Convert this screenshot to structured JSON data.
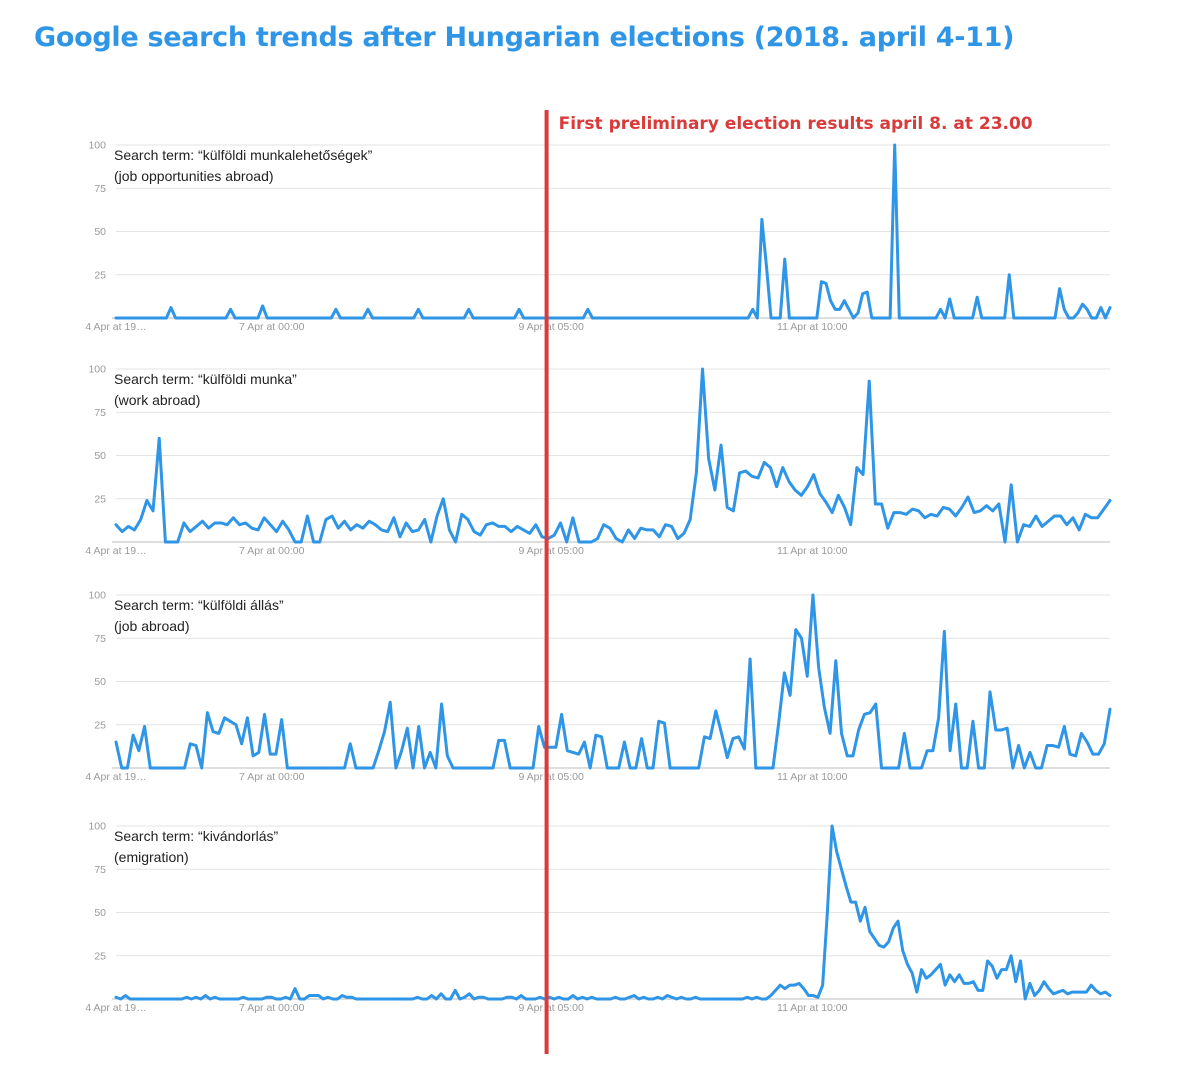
{
  "title": "Google search trends after Hungarian elections (2018. april 4-11)",
  "annotation": {
    "label": "First preliminary election results april 8. at 23.00",
    "color": "#d93a3a",
    "x_index": 94
  },
  "colors": {
    "series": "#2f95e6",
    "grid": "#e3e3e3",
    "axis": "#9a9a9a"
  },
  "chart_data": [
    {
      "type": "line",
      "label_line1": "Search term: “külföldi munkalehetőségek”",
      "label_line2": "(job opportunities abroad)",
      "ylim": [
        0,
        100
      ],
      "yticks": [
        "25",
        "50",
        "75",
        "100"
      ],
      "xticks": [
        {
          "i": 0,
          "label": "4 Apr at 19…"
        },
        {
          "i": 34,
          "label": "7 Apr at 00:00"
        },
        {
          "i": 95,
          "label": "9 Apr at 05:00"
        },
        {
          "i": 152,
          "label": "11 Apr at 10:00"
        }
      ],
      "values": [
        0,
        0,
        0,
        0,
        0,
        0,
        0,
        0,
        0,
        0,
        0,
        0,
        6,
        0,
        0,
        0,
        0,
        0,
        0,
        0,
        0,
        0,
        0,
        0,
        0,
        5,
        0,
        0,
        0,
        0,
        0,
        0,
        7,
        0,
        0,
        0,
        0,
        0,
        0,
        0,
        0,
        0,
        0,
        0,
        0,
        0,
        0,
        0,
        5,
        0,
        0,
        0,
        0,
        0,
        0,
        5,
        0,
        0,
        0,
        0,
        0,
        0,
        0,
        0,
        0,
        0,
        5,
        0,
        0,
        0,
        0,
        0,
        0,
        0,
        0,
        0,
        0,
        5,
        0,
        0,
        0,
        0,
        0,
        0,
        0,
        0,
        0,
        0,
        5,
        0,
        0,
        0,
        0,
        0,
        0,
        0,
        0,
        0,
        0,
        0,
        0,
        0,
        0,
        5,
        0,
        0,
        0,
        0,
        0,
        0,
        0,
        0,
        0,
        0,
        0,
        0,
        0,
        0,
        0,
        0,
        0,
        0,
        0,
        0,
        0,
        0,
        0,
        0,
        0,
        0,
        0,
        0,
        0,
        0,
        0,
        0,
        0,
        0,
        0,
        5,
        0,
        57,
        30,
        0,
        0,
        0,
        34,
        0,
        0,
        0,
        0,
        0,
        0,
        0,
        21,
        20,
        10,
        5,
        5,
        10,
        5,
        0,
        3,
        14,
        15,
        0,
        0,
        0,
        0,
        0,
        100,
        0,
        0,
        0,
        0,
        0,
        0,
        0,
        0,
        0,
        5,
        0,
        11,
        0,
        0,
        0,
        0,
        0,
        12,
        0,
        0,
        0,
        0,
        0,
        0,
        25,
        0,
        0,
        0,
        0,
        0,
        0,
        0,
        0,
        0,
        0,
        17,
        5,
        0,
        0,
        3,
        8,
        5,
        0,
        0,
        6,
        0,
        6
      ]
    },
    {
      "type": "line",
      "label_line1": "Search term: “külföldi munka”",
      "label_line2": "(work abroad)",
      "ylim": [
        0,
        100
      ],
      "yticks": [
        "25",
        "50",
        "75",
        "100"
      ],
      "xticks": [
        {
          "i": 0,
          "label": "4 Apr at 19…"
        },
        {
          "i": 34,
          "label": "7 Apr at 00:00"
        },
        {
          "i": 95,
          "label": "9 Apr at 05:00"
        },
        {
          "i": 152,
          "label": "11 Apr at 10:00"
        }
      ],
      "values": [
        10,
        6,
        9,
        7,
        13,
        24,
        18,
        60,
        0,
        0,
        0,
        11,
        6,
        9,
        12,
        8,
        11,
        11,
        10,
        14,
        10,
        11,
        8,
        7,
        14,
        10,
        6,
        12,
        7,
        0,
        0,
        15,
        0,
        0,
        13,
        15,
        8,
        12,
        7,
        10,
        8,
        12,
        10,
        7,
        6,
        14,
        3,
        11,
        6,
        7,
        13,
        0,
        15,
        25,
        7,
        0,
        16,
        13,
        6,
        4,
        10,
        11,
        9,
        9,
        6,
        9,
        7,
        5,
        10,
        3,
        2,
        4,
        11,
        0,
        14,
        0,
        0,
        0,
        2,
        10,
        8,
        2,
        0,
        7,
        2,
        8,
        7,
        7,
        3,
        10,
        9,
        2,
        5,
        13,
        40,
        100,
        48,
        30,
        56,
        20,
        18,
        40,
        41,
        38,
        37,
        46,
        43,
        32,
        43,
        35,
        30,
        27,
        32,
        39,
        28,
        23,
        17,
        27,
        20,
        10,
        43,
        39,
        93,
        22,
        22,
        8,
        17,
        17,
        16,
        19,
        18,
        14,
        16,
        15,
        20,
        19,
        15,
        20,
        26,
        17,
        18,
        21,
        18,
        22,
        0,
        33,
        0,
        10,
        9,
        15,
        9,
        12,
        15,
        15,
        10,
        14,
        7,
        16,
        14,
        14,
        19,
        24
      ]
    },
    {
      "type": "line",
      "label_line1": "Search term: “külföldi állás”",
      "label_line2": "(job abroad)",
      "ylim": [
        0,
        100
      ],
      "yticks": [
        "25",
        "50",
        "75",
        "100"
      ],
      "xticks": [
        {
          "i": 0,
          "label": "4 Apr at 19…"
        },
        {
          "i": 34,
          "label": "7 Apr at 00:00"
        },
        {
          "i": 95,
          "label": "9 Apr at 05:00"
        },
        {
          "i": 152,
          "label": "11 Apr at 10:00"
        }
      ],
      "values": [
        15,
        0,
        0,
        19,
        10,
        24,
        0,
        0,
        0,
        0,
        0,
        0,
        0,
        14,
        13,
        0,
        32,
        21,
        20,
        29,
        27,
        25,
        14,
        29,
        7,
        9,
        31,
        8,
        8,
        28,
        0,
        0,
        0,
        0,
        0,
        0,
        0,
        0,
        0,
        0,
        0,
        14,
        0,
        0,
        0,
        0,
        10,
        21,
        38,
        0,
        10,
        23,
        0,
        24,
        0,
        9,
        0,
        37,
        7,
        0,
        0,
        0,
        0,
        0,
        0,
        0,
        0,
        16,
        16,
        0,
        0,
        0,
        0,
        0,
        24,
        12,
        12,
        12,
        31,
        10,
        9,
        8,
        15,
        0,
        19,
        18,
        0,
        0,
        0,
        15,
        0,
        0,
        17,
        0,
        0,
        27,
        26,
        0,
        0,
        0,
        0,
        0,
        0,
        18,
        17,
        33,
        20,
        6,
        17,
        18,
        11,
        63,
        0,
        0,
        0,
        0,
        26,
        55,
        42,
        80,
        75,
        53,
        100,
        58,
        35,
        20,
        62,
        20,
        7,
        7,
        22,
        31,
        32,
        37,
        0,
        0,
        0,
        0,
        20,
        0,
        0,
        0,
        10,
        10,
        29,
        79,
        10,
        37,
        0,
        0,
        27,
        0,
        0,
        44,
        22,
        22,
        23,
        0,
        13,
        0,
        9,
        0,
        0,
        13,
        13,
        12,
        24,
        8,
        7,
        20,
        15,
        8,
        8,
        14,
        34
      ]
    },
    {
      "type": "line",
      "label_line1": "Search term: “kivándorlás”",
      "label_line2": "(emigration)",
      "ylim": [
        0,
        100
      ],
      "yticks": [
        "25",
        "50",
        "75",
        "100"
      ],
      "xticks": [
        {
          "i": 0,
          "label": "4 Apr at 19…"
        },
        {
          "i": 34,
          "label": "7 Apr at 00:00"
        },
        {
          "i": 95,
          "label": "9 Apr at 05:00"
        },
        {
          "i": 152,
          "label": "11 Apr at 10:00"
        }
      ],
      "values": [
        1,
        0,
        2,
        0,
        0,
        0,
        0,
        0,
        0,
        0,
        0,
        0,
        0,
        0,
        0,
        1,
        0,
        1,
        0,
        2,
        0,
        1,
        0,
        0,
        0,
        0,
        0,
        1,
        0,
        0,
        0,
        0,
        1,
        1,
        0,
        0,
        1,
        0,
        6,
        0,
        0,
        2,
        2,
        2,
        0,
        1,
        0,
        0,
        2,
        1,
        1,
        0,
        0,
        0,
        0,
        0,
        0,
        0,
        0,
        0,
        0,
        0,
        0,
        0,
        1,
        0,
        0,
        2,
        0,
        3,
        0,
        0,
        5,
        0,
        1,
        3,
        0,
        1,
        1,
        0,
        0,
        0,
        0,
        1,
        1,
        0,
        2,
        0,
        0,
        0,
        1,
        0,
        1,
        0,
        1,
        0,
        0,
        2,
        0,
        1,
        0,
        1,
        0,
        0,
        0,
        0,
        1,
        0,
        0,
        1,
        2,
        0,
        1,
        0,
        0,
        1,
        0,
        2,
        1,
        0,
        1,
        0,
        0,
        1,
        0,
        0,
        0,
        0,
        0,
        0,
        0,
        0,
        0,
        0,
        1,
        0,
        1,
        0,
        0,
        2,
        5,
        8,
        6,
        8,
        8,
        9,
        6,
        2,
        2,
        1,
        8,
        50,
        100,
        85,
        75,
        65,
        56,
        56,
        45,
        53,
        39,
        35,
        31,
        30,
        33,
        41,
        45,
        28,
        20,
        15,
        4,
        17,
        12,
        14,
        17,
        20,
        8,
        14,
        10,
        14,
        9,
        9,
        10,
        5,
        5,
        22,
        19,
        12,
        17,
        17,
        25,
        10,
        22,
        0,
        9,
        2,
        5,
        10,
        6,
        3,
        4,
        5,
        3,
        4,
        4,
        4,
        4,
        8,
        5,
        3,
        4,
        2
      ]
    }
  ]
}
